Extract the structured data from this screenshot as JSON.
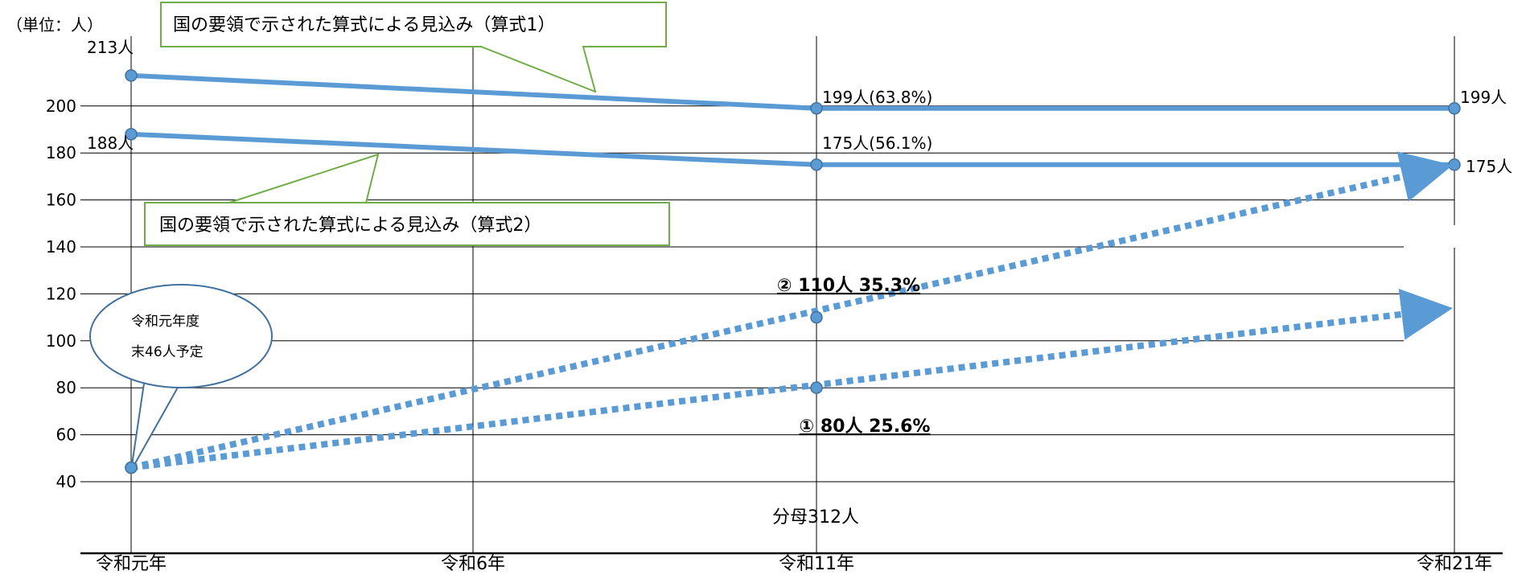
{
  "chart_data": {
    "type": "line",
    "unit_label": "（単位：人）",
    "categories": [
      "令和元年",
      "令和6年",
      "令和11年",
      "令和21年"
    ],
    "ylim": [
      40,
      220
    ],
    "yticks": [
      40,
      60,
      80,
      100,
      120,
      140,
      160,
      180,
      200
    ],
    "grid": true,
    "series": [
      {
        "name": "国の要領で示された算式による見込み（算式1）",
        "style": "solid",
        "points": [
          {
            "x": "令和元年",
            "y": 213
          },
          {
            "x": "令和11年",
            "y": 199
          },
          {
            "x": "令和21年",
            "y": 199
          }
        ],
        "labels": [
          "213人",
          "199人(63.8%)",
          "199人"
        ]
      },
      {
        "name": "国の要領で示された算式による見込み（算式2）",
        "style": "solid",
        "points": [
          {
            "x": "令和元年",
            "y": 188
          },
          {
            "x": "令和11年",
            "y": 175
          },
          {
            "x": "令和21年",
            "y": 175
          }
        ],
        "labels": [
          "188人",
          "175人(56.1%)",
          "175人"
        ]
      },
      {
        "name": "②",
        "style": "dotted-arrow",
        "points": [
          {
            "x": "令和元年",
            "y": 46
          },
          {
            "x": "令和11年",
            "y": 110
          },
          {
            "x": "令和21年",
            "y": 175
          }
        ],
        "labels": [
          "",
          "② 110人 35.3%",
          ""
        ]
      },
      {
        "name": "①",
        "style": "dotted-arrow",
        "points": [
          {
            "x": "令和元年",
            "y": 46
          },
          {
            "x": "令和11年",
            "y": 80
          },
          {
            "x": "令和21年",
            "y": 114
          }
        ],
        "labels": [
          "",
          "① 80人 25.6%",
          ""
        ]
      }
    ],
    "annotations": {
      "bubble_line1": "令和元年度",
      "bubble_line2": "末46人予定",
      "denominator": "分母312人"
    },
    "colors": {
      "series": "#5b9bd5",
      "marker_edge": "#41719c",
      "callout_border": "#70ad47",
      "bubble_border": "#41719c"
    }
  }
}
